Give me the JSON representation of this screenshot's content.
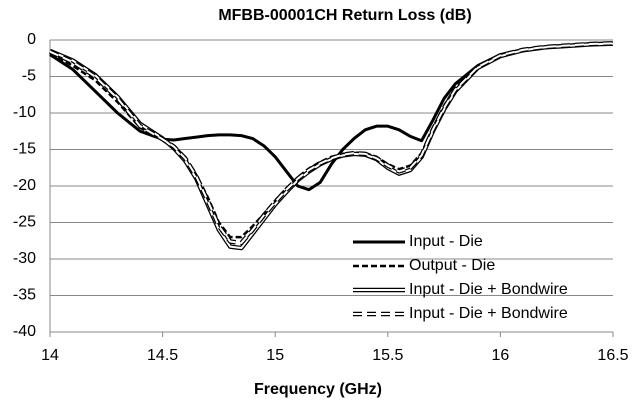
{
  "chart_data": {
    "type": "line",
    "title": "MFBB-00001CH Return Loss (dB)",
    "x_label": "Frequency  (GHz)",
    "x": [
      14,
      14.1,
      14.2,
      14.3,
      14.4,
      14.5,
      14.55,
      14.6,
      14.65,
      14.7,
      14.75,
      14.8,
      14.85,
      14.9,
      14.95,
      15,
      15.05,
      15.1,
      15.15,
      15.2,
      15.25,
      15.3,
      15.35,
      15.4,
      15.45,
      15.5,
      15.55,
      15.6,
      15.65,
      15.7,
      15.75,
      15.8,
      15.9,
      16,
      16.1,
      16.2,
      16.3,
      16.4,
      16.5
    ],
    "series": [
      {
        "name": "Input - Die",
        "color": "#000000",
        "style": "solid",
        "values": [
          -2,
          -4,
          -7,
          -10,
          -12.5,
          -13.6,
          -13.7,
          -13.5,
          -13.3,
          -13.1,
          -13,
          -13,
          -13.1,
          -13.5,
          -14.5,
          -16,
          -18,
          -20,
          -20.5,
          -19.5,
          -17,
          -15,
          -13.5,
          -12.3,
          -11.8,
          -11.8,
          -12.3,
          -13.2,
          -13.8,
          -11,
          -8,
          -6,
          -3.5,
          -2,
          -1.3,
          -0.9,
          -0.7,
          -0.5,
          -0.4
        ]
      },
      {
        "name": "Output - Die",
        "color": "#000000",
        "style": "dashed",
        "values": [
          -1.8,
          -3.5,
          -5.5,
          -8.5,
          -12,
          -13.6,
          -14.5,
          -16,
          -18.5,
          -21.5,
          -25,
          -27,
          -27,
          -25.5,
          -23.8,
          -22,
          -20.3,
          -18.8,
          -17.6,
          -16.7,
          -16,
          -15.6,
          -15.4,
          -15.5,
          -16,
          -17,
          -17.7,
          -17.2,
          -15.5,
          -12,
          -9,
          -6.5,
          -3.5,
          -2,
          -1.3,
          -0.9,
          -0.7,
          -0.5,
          -0.4
        ]
      },
      {
        "name": "Input - Die + Bondwire",
        "color": "#000000",
        "style": "double",
        "values": [
          -1.5,
          -2.8,
          -4.8,
          -7.8,
          -11.5,
          -13.5,
          -14.8,
          -16.5,
          -19,
          -22.5,
          -26,
          -28.3,
          -28.5,
          -26.5,
          -24.5,
          -22.5,
          -20.8,
          -19.2,
          -18,
          -17,
          -16.3,
          -15.8,
          -15.6,
          -15.7,
          -16.3,
          -17.5,
          -18.3,
          -17.8,
          -16,
          -12.5,
          -9.5,
          -7,
          -3.8,
          -2.2,
          -1.4,
          -1,
          -0.8,
          -0.6,
          -0.5
        ]
      },
      {
        "name": "Input - Die + Bondwire",
        "color": "#000000",
        "style": "double-dashed",
        "values": [
          -1.6,
          -3,
          -5,
          -8,
          -11.8,
          -13.6,
          -14.6,
          -16.2,
          -18.7,
          -22,
          -25.5,
          -27.6,
          -27.8,
          -26,
          -24,
          -22.2,
          -20.5,
          -19,
          -17.8,
          -16.9,
          -16.2,
          -15.7,
          -15.5,
          -15.6,
          -16.2,
          -17.2,
          -18,
          -17.5,
          -15.8,
          -12.3,
          -9.3,
          -6.8,
          -3.7,
          -2.1,
          -1.35,
          -0.95,
          -0.75,
          -0.55,
          -0.45
        ]
      }
    ],
    "xlim": [
      14,
      16.5
    ],
    "xticks": [
      14,
      14.5,
      15,
      15.5,
      16,
      16.5
    ],
    "ylim": [
      -40,
      0
    ],
    "yticks": [
      0,
      -5,
      -10,
      -15,
      -20,
      -25,
      -30,
      -35,
      -40
    ],
    "grid": true,
    "legend": "lower right"
  }
}
